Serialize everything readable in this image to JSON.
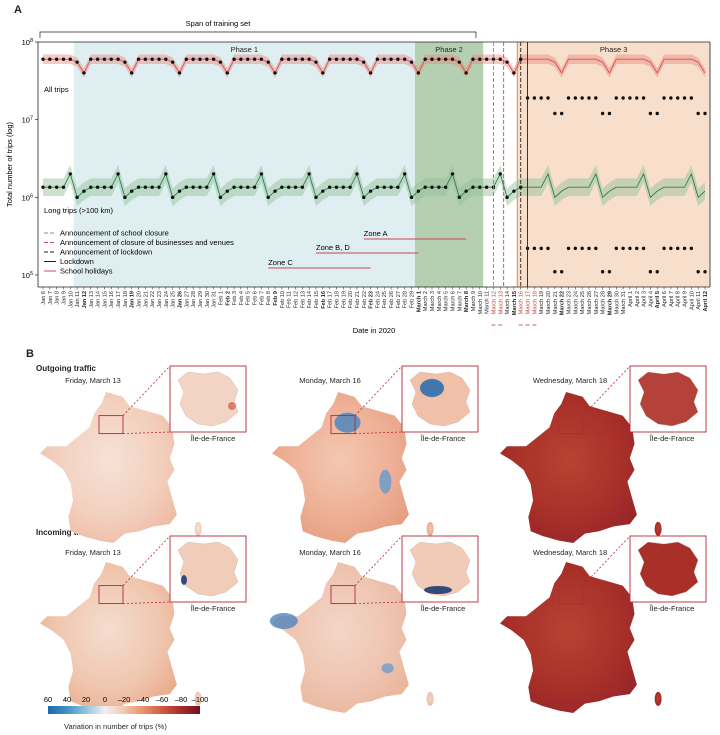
{
  "panel_a": {
    "letter": "A",
    "training_span_label": "Span of training set",
    "phases": [
      "Phase 1",
      "Phase 2",
      "Phase 3"
    ],
    "series_labels": {
      "all_trips": "All trips",
      "long_trips": "Long trips (>100 km)"
    },
    "ylabel": "Total number of trips (log)",
    "xlabel": "Date in 2020",
    "yticks": [
      {
        "base": "10",
        "exp": "8",
        "value": 100000000
      },
      {
        "base": "10",
        "exp": "7",
        "value": 10000000
      },
      {
        "base": "10",
        "exp": "6",
        "value": 1000000
      },
      {
        "base": "10",
        "exp": "5",
        "value": 100000
      }
    ],
    "legend": [
      {
        "label": "Announcement of school closure",
        "style": "dash-gray"
      },
      {
        "label": "Announcement of closure of businesses and venues",
        "style": "dash-red"
      },
      {
        "label": "Announcement of lockdown",
        "style": "dash-black"
      },
      {
        "label": "Lockdown",
        "style": "solid-black"
      },
      {
        "label": "School holidays",
        "style": "solid-red"
      }
    ],
    "zones": [
      "Zone A",
      "Zone B, D",
      "Zone C"
    ],
    "colors": {
      "phase1": "#dcecef",
      "phase2": "#a7c8a2",
      "phase3": "#f7dcc6",
      "all_line": "#d9534f",
      "long_line": "#2e7d4f",
      "holiday": "#d0445a"
    }
  },
  "chart_data": {
    "type": "line",
    "y_scale": "log",
    "ylim": [
      70000,
      100000000
    ],
    "x": [
      "Jan 6",
      "Jan 7",
      "Jan 8",
      "Jan 9",
      "Jan 10",
      "Jan 11",
      "Jan 12",
      "Jan 13",
      "Jan 14",
      "Jan 15",
      "Jan 16",
      "Jan 17",
      "Jan 18",
      "Jan 19",
      "Jan 20",
      "Jan 21",
      "Jan 22",
      "Jan 23",
      "Jan 24",
      "Jan 25",
      "Jan 26",
      "Jan 27",
      "Jan 28",
      "Jan 29",
      "Jan 30",
      "Jan 31",
      "Feb 1",
      "Feb 2",
      "Feb 3",
      "Feb 4",
      "Feb 5",
      "Feb 6",
      "Feb 7",
      "Feb 8",
      "Feb 9",
      "Feb 10",
      "Feb 11",
      "Feb 12",
      "Feb 13",
      "Feb 14",
      "Feb 15",
      "Feb 16",
      "Feb 17",
      "Feb 18",
      "Feb 19",
      "Feb 20",
      "Feb 21",
      "Feb 22",
      "Feb 23",
      "Feb 24",
      "Feb 25",
      "Feb 26",
      "Feb 27",
      "Feb 28",
      "Feb 29",
      "March 1",
      "March 2",
      "March 3",
      "March 4",
      "March 5",
      "March 6",
      "March 7",
      "March 8",
      "March 9",
      "March 10",
      "March 11",
      "March 12",
      "March 13",
      "March 14",
      "March 15",
      "March 16",
      "March 17",
      "March 18",
      "March 19",
      "March 20",
      "March 21",
      "March 22",
      "March 23",
      "March 24",
      "March 25",
      "March 26",
      "March 27",
      "March 28",
      "March 29",
      "March 30",
      "March 31",
      "April 1",
      "April 2",
      "April 3",
      "April 4",
      "April 5",
      "April 6",
      "April 7",
      "April 8",
      "April 9",
      "April 10",
      "April 11",
      "April 12"
    ],
    "bold_ticks": [
      "Jan 12",
      "Jan 19",
      "Jan 26",
      "Feb 2",
      "Feb 9",
      "Feb 16",
      "Feb 23",
      "March 1",
      "March 8",
      "March 15",
      "March 22",
      "March 29",
      "April 5",
      "April 12"
    ],
    "red_ticks": [
      "March 12",
      "March 13",
      "March 16",
      "March 17",
      "March 18"
    ],
    "series": [
      {
        "name": "All trips",
        "observed_end": "March 18",
        "weekday": 60000000,
        "saturday": 55000000,
        "sunday": 40000000,
        "lockdown_weekday": 19000000,
        "lockdown_weekend": 12000000
      },
      {
        "name": "Long trips (>100 km)",
        "observed_end": "March 18",
        "weekday": 1350000,
        "friday": 2000000,
        "sunday": 1200000,
        "saturday": 1000000,
        "lockdown_weekday": 220000,
        "lockdown_weekend": 110000
      }
    ],
    "events": [
      {
        "label": "Announcement of school closure",
        "date": "March 12"
      },
      {
        "label": "Announcement of closure of businesses and venues",
        "date": "March 14"
      },
      {
        "label": "Announcement of lockdown",
        "date": "March 16"
      },
      {
        "label": "Lockdown",
        "date": "March 17"
      }
    ],
    "phases": [
      {
        "name": "Phase 1",
        "start": "Jan 11",
        "end": "Feb 29"
      },
      {
        "name": "Phase 2",
        "start": "March 1",
        "end": "March 10"
      },
      {
        "name": "Phase 3",
        "start": "March 16",
        "end": "April 12"
      }
    ],
    "training_span": {
      "start": "Jan 6",
      "end": "March 9"
    },
    "school_holidays": [
      {
        "zone": "Zone A",
        "start": "Feb 22",
        "end": "March 8"
      },
      {
        "zone": "Zone B, D",
        "start": "Feb 15",
        "end": "March 1"
      },
      {
        "zone": "Zone C",
        "start": "Feb 8",
        "end": "Feb 23"
      }
    ]
  },
  "panel_b": {
    "letter": "B",
    "sections": [
      {
        "title": "Outgoing traffic",
        "maps": [
          {
            "date": "Friday, March 13",
            "inset": "Île-de-France",
            "tone": "mild"
          },
          {
            "date": "Monday, March 16",
            "inset": "Île-de-France",
            "tone": "mixed"
          },
          {
            "date": "Wednesday, March 18",
            "inset": "Île-de-France",
            "tone": "strong"
          }
        ]
      },
      {
        "title": "Incoming traffic",
        "maps": [
          {
            "date": "Friday, March 13",
            "inset": "Île-de-France",
            "tone": "mild"
          },
          {
            "date": "Monday, March 16",
            "inset": "Île-de-France",
            "tone": "mixed"
          },
          {
            "date": "Wednesday, March 18",
            "inset": "Île-de-France",
            "tone": "strong"
          }
        ]
      }
    ],
    "colorbar": {
      "ticks": [
        "60",
        "40",
        "20",
        "0",
        "–20",
        "–40",
        "–60",
        "–80",
        "–100"
      ],
      "title": "Variation in number of trips (%)",
      "colors": [
        "#2166ac",
        "#4393c3",
        "#92c5de",
        "#f0f0f0",
        "#f4c7b0",
        "#e8936b",
        "#cf5a44",
        "#a72b2d",
        "#6e1322"
      ]
    }
  }
}
